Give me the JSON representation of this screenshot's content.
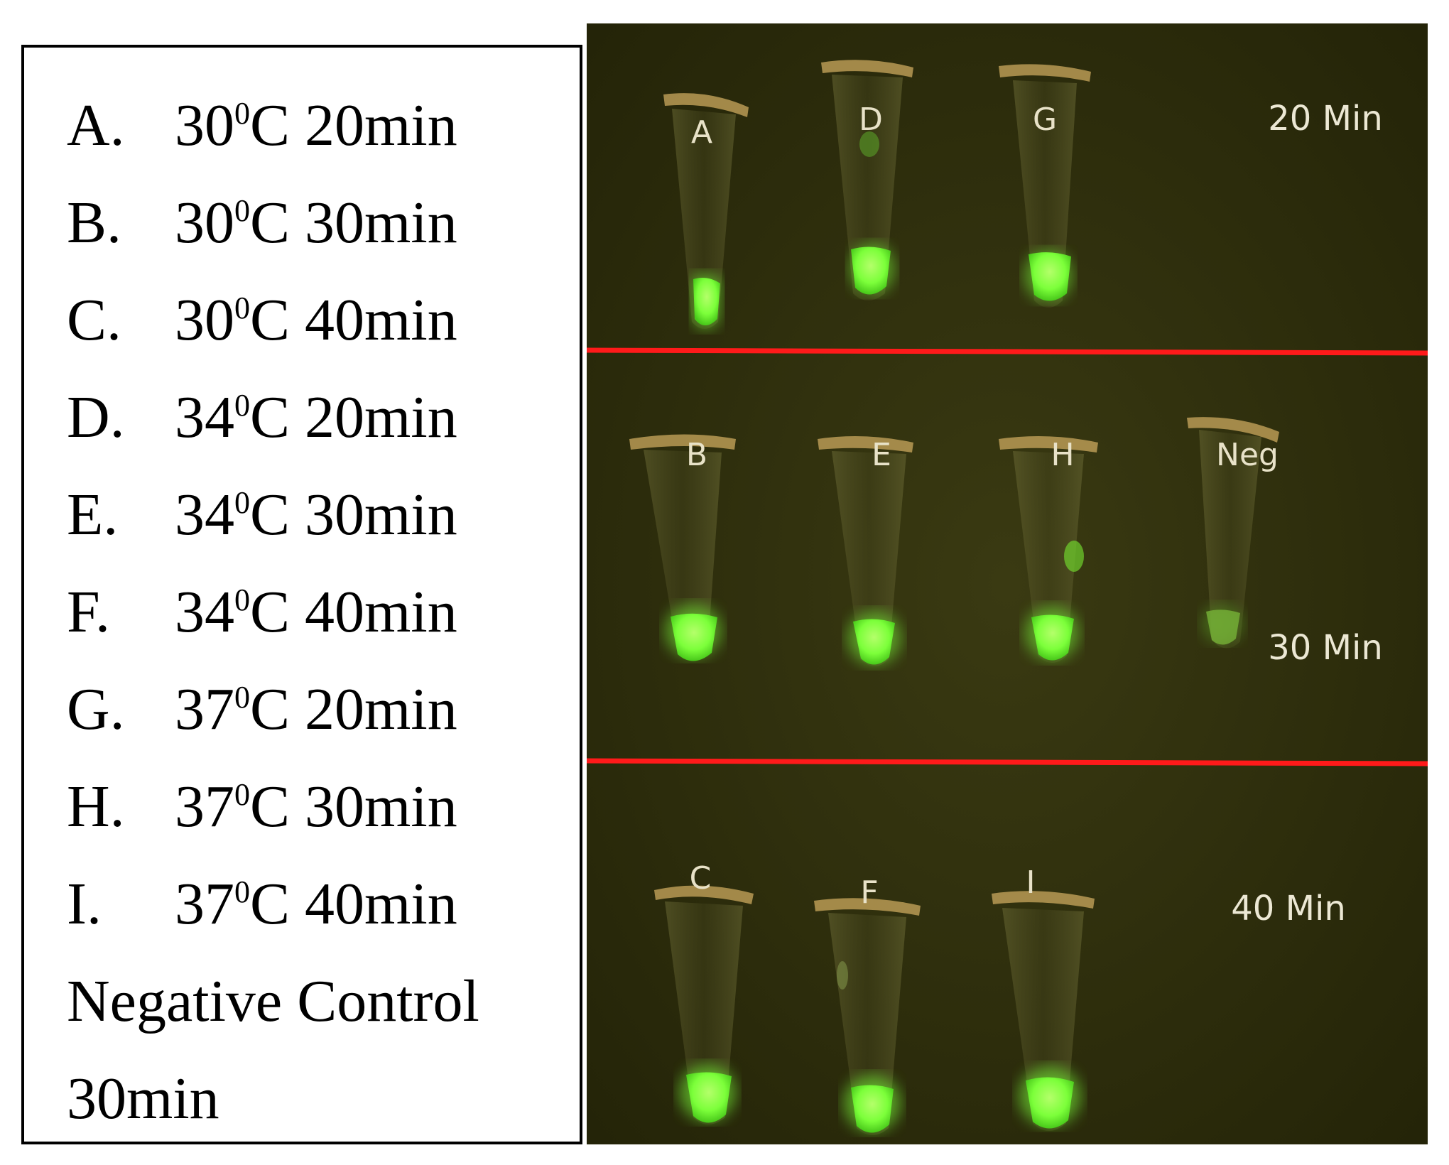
{
  "legend": {
    "items": [
      {
        "letter": "A.",
        "temp": "30",
        "deg": "0",
        "rest": "C 20min"
      },
      {
        "letter": "B.",
        "temp": "30",
        "deg": "0",
        "rest": "C 30min"
      },
      {
        "letter": "C.",
        "temp": "30",
        "deg": "0",
        "rest": "C 40min"
      },
      {
        "letter": "D.",
        "temp": "34",
        "deg": "0",
        "rest": "C 20min"
      },
      {
        "letter": "E.",
        "temp": "34",
        "deg": "0",
        "rest": "C 30min"
      },
      {
        "letter": "F.",
        "temp": "34",
        "deg": "0",
        "rest": "C 40min"
      },
      {
        "letter": "G.",
        "temp": "37",
        "deg": "0",
        "rest": "C 20min"
      },
      {
        "letter": "H.",
        "temp": "37",
        "deg": "0",
        "rest": "C 30min"
      },
      {
        "letter": "I.",
        "temp": "37",
        "deg": "0",
        "rest": "C 40min"
      }
    ],
    "negative_line1": "Negative Control",
    "negative_line2": "30min"
  },
  "photo": {
    "rows": [
      {
        "time_label": "20 Min",
        "tubes": [
          "A",
          "D",
          "G"
        ]
      },
      {
        "time_label": "30 Min",
        "tubes": [
          "B",
          "E",
          "H",
          "Neg"
        ]
      },
      {
        "time_label": "40 Min",
        "tubes": [
          "C",
          "F",
          "I"
        ]
      }
    ],
    "colors": {
      "background": "#2a2a0c",
      "fluorescence": "#7cff3a",
      "divider": "#ff1a1a",
      "cap": "#b89a55"
    }
  }
}
